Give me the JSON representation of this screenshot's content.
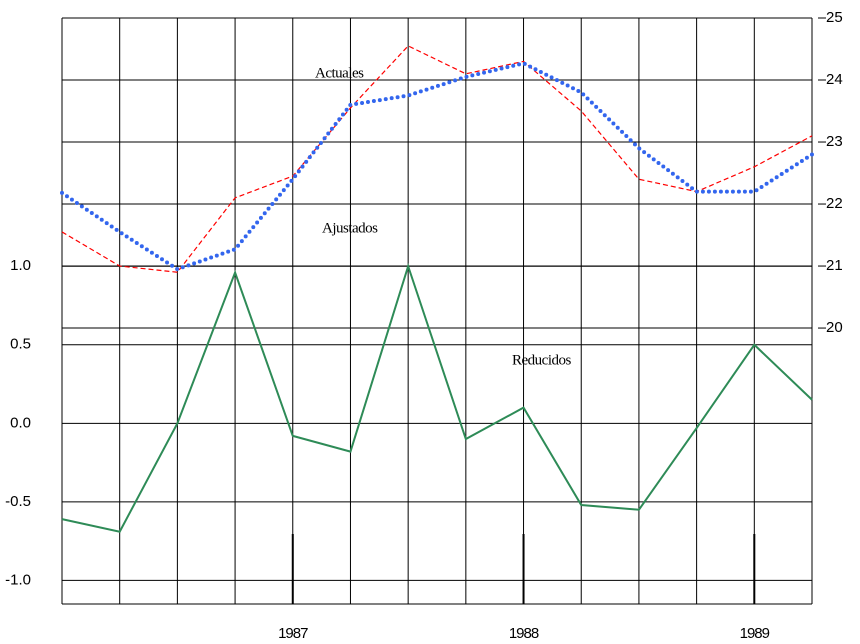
{
  "chart_data": {
    "type": "line",
    "categories": [
      null,
      null,
      null,
      null,
      "1987",
      null,
      null,
      null,
      "1988",
      null,
      null,
      null,
      "1989",
      null
    ],
    "series": [
      {
        "name": "Actuales",
        "color": "#ff0000",
        "axis": "y2",
        "line_style": "dashed",
        "values": [
          21.55,
          21.0,
          20.9,
          22.1,
          22.45,
          23.55,
          24.55,
          24.1,
          24.3,
          23.5,
          22.4,
          22.2,
          22.6,
          23.1
        ]
      },
      {
        "name": "Ajustados",
        "color": "#3366ee",
        "axis": "y2",
        "line_style": "dotted",
        "values": [
          22.18,
          21.55,
          20.95,
          21.27,
          22.4,
          23.6,
          23.75,
          24.05,
          24.27,
          23.8,
          22.9,
          22.2,
          22.2,
          22.8
        ]
      },
      {
        "name": "Reducidos",
        "color": "#2e8b57",
        "axis": "y",
        "line_style": "solid",
        "values": [
          -0.61,
          -0.69,
          0.0,
          0.96,
          -0.08,
          -0.18,
          1.0,
          -0.1,
          0.1,
          -0.52,
          -0.55,
          -0.03,
          0.5,
          0.15
        ]
      }
    ],
    "ylim": [
      -1.15,
      2.58
    ],
    "yticks": [
      {
        "value": 1.0,
        "label": "1.0"
      },
      {
        "value": 0.5,
        "label": "0.5"
      },
      {
        "value": 0.0,
        "label": "0.0"
      },
      {
        "value": -0.5,
        "label": "-0.5"
      },
      {
        "value": -1.0,
        "label": "-1.0"
      }
    ],
    "y2lim": [
      15.55,
      25.0
    ],
    "y2ticks": [
      25,
      24,
      23,
      22,
      21,
      20
    ],
    "grid": true
  }
}
